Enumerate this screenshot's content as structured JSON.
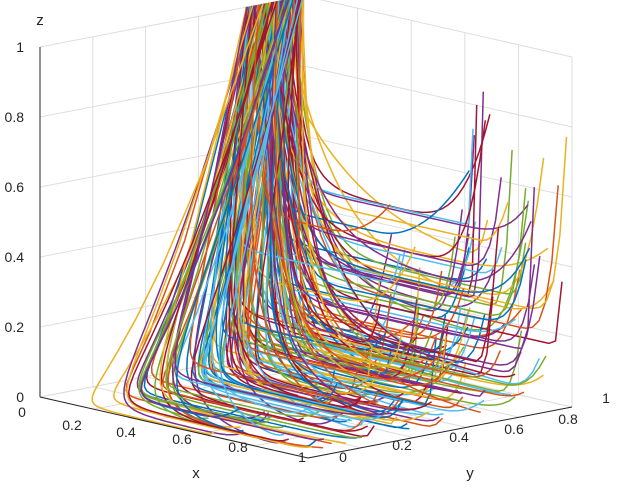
{
  "chart_data": {
    "type": "line",
    "projection": "3d",
    "title": "",
    "xlabel": "x",
    "ylabel": "y",
    "zlabel": "z",
    "xlim": [
      0,
      1
    ],
    "ylim": [
      0,
      1
    ],
    "zlim": [
      0,
      1
    ],
    "x_ticks": [
      "0",
      "0.2",
      "0.4",
      "0.6",
      "0.8",
      "1"
    ],
    "y_ticks": [
      "0",
      "0.2",
      "0.4",
      "0.6",
      "0.8",
      "1"
    ],
    "z_ticks": [
      "0",
      "0.2",
      "0.4",
      "0.6",
      "0.8",
      "1"
    ],
    "grid": true,
    "legend": "none",
    "series_description": "Many evolutionary trajectories starting near (x=0, y≈0.8–1, z=1), dropping in z and spreading across y as x increases, then turning upward toward the back wall (x=1) with end heights from 0 to 0.95.",
    "colors": [
      "#0072BD",
      "#D95319",
      "#EDB120",
      "#7E2F8E",
      "#77AC30",
      "#4DBEEE",
      "#A2142F"
    ],
    "series_families": [
      {
        "y_end": [
          0.45,
          1.0
        ],
        "z_start": 1,
        "z_end": [
          0.0,
          0.95
        ],
        "count": 150
      },
      {
        "y_end": [
          0.0,
          0.55
        ],
        "z_start": 1,
        "z_end": [
          0.0,
          0.15
        ],
        "count": 50
      }
    ]
  }
}
